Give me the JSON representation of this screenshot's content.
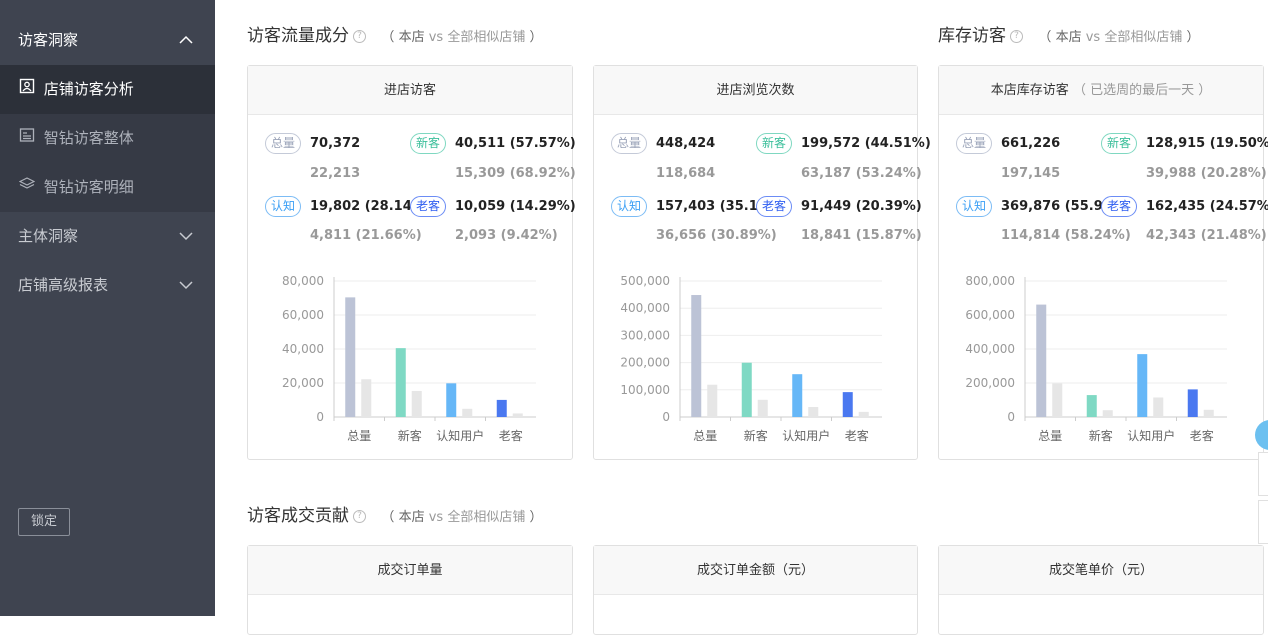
{
  "sidebar": {
    "section_title": "访客洞察",
    "items": [
      {
        "label": "店铺访客分析",
        "icon": "user-portrait-icon"
      },
      {
        "label": "智钻访客整体",
        "icon": "report-icon"
      },
      {
        "label": "智钻访客明细",
        "icon": "layers-icon"
      }
    ],
    "groups": [
      {
        "label": "主体洞察"
      },
      {
        "label": "店铺高级报表"
      }
    ],
    "lock_label": "锁定"
  },
  "sections": {
    "traffic": {
      "title": "访客流量成分",
      "compare": {
        "open": "（",
        "store": "本店",
        "vs": "vs",
        "peers": "全部相似店铺",
        "close": "）"
      }
    },
    "inventory": {
      "title": "库存访客",
      "compare": {
        "open": "（",
        "store": "本店",
        "vs": "vs",
        "peers": "全部相似店铺",
        "close": "）"
      }
    },
    "contribution": {
      "title": "访客成交贡献",
      "compare": {
        "open": "（",
        "store": "本店",
        "vs": "vs",
        "peers": "全部相似店铺",
        "close": "）"
      }
    }
  },
  "help_icon": "?",
  "tags": {
    "total": "总量",
    "new": "新客",
    "know": "认知",
    "old": "老客"
  },
  "cards": [
    {
      "title": "进店访客",
      "title_note": "",
      "total": {
        "main": "70,372",
        "sub": "22,213"
      },
      "new": {
        "main": "40,511 (57.57%)",
        "sub": "15,309 (68.92%)"
      },
      "know": {
        "main": "19,802 (28.14%)",
        "sub": "4,811 (21.66%)"
      },
      "old": {
        "main": "10,059 (14.29%)",
        "sub": "2,093 (9.42%)"
      }
    },
    {
      "title": "进店浏览次数",
      "title_note": "",
      "total": {
        "main": "448,424",
        "sub": "118,684"
      },
      "new": {
        "main": "199,572 (44.51%)",
        "sub": "63,187 (53.24%)"
      },
      "know": {
        "main": "157,403 (35.10%)",
        "sub": "36,656 (30.89%)"
      },
      "old": {
        "main": "91,449 (20.39%)",
        "sub": "18,841 (15.87%)"
      }
    },
    {
      "title": "本店库存访客",
      "title_note": "（ 已选周的最后一天 ）",
      "total": {
        "main": "661,226",
        "sub": "197,145"
      },
      "new": {
        "main": "128,915 (19.50%)",
        "sub": "39,988 (20.28%)"
      },
      "know": {
        "main": "369,876 (55.94%)",
        "sub": "114,814 (58.24%)"
      },
      "old": {
        "main": "162,435 (24.57%)",
        "sub": "42,343 (21.48%)"
      }
    }
  ],
  "bottom_cards": [
    {
      "title": "成交订单量"
    },
    {
      "title": "成交订单金额（元）"
    },
    {
      "title": "成交笔单价（元）"
    }
  ],
  "chart_data": [
    {
      "type": "bar",
      "categories": [
        "总量",
        "新客",
        "认知用户",
        "老客"
      ],
      "yticks": [
        "0",
        "20,000",
        "40,000",
        "60,000",
        "80,000"
      ],
      "ylim": [
        0,
        80000
      ],
      "series": [
        {
          "values": [
            70372,
            40511,
            19802,
            10059
          ]
        },
        {
          "values": [
            22213,
            15309,
            4811,
            2093
          ]
        }
      ]
    },
    {
      "type": "bar",
      "categories": [
        "总量",
        "新客",
        "认知用户",
        "老客"
      ],
      "yticks": [
        "0",
        "100,000",
        "200,000",
        "300,000",
        "400,000",
        "500,000"
      ],
      "ylim": [
        0,
        500000
      ],
      "series": [
        {
          "values": [
            448424,
            199572,
            157403,
            91449
          ]
        },
        {
          "values": [
            118684,
            63187,
            36656,
            18841
          ]
        }
      ]
    },
    {
      "type": "bar",
      "categories": [
        "总量",
        "新客",
        "认知用户",
        "老客"
      ],
      "yticks": [
        "0",
        "200,000",
        "400,000",
        "600,000",
        "800,000"
      ],
      "ylim": [
        0,
        800000
      ],
      "series": [
        {
          "values": [
            661226,
            128915,
            369876,
            162435
          ]
        },
        {
          "values": [
            197145,
            39988,
            114814,
            42343
          ]
        }
      ]
    }
  ],
  "colors": {
    "total": "#bcc3d6",
    "new": "#7fd9c4",
    "know": "#66b7f7",
    "old": "#4a78f0",
    "peer": "#e6e6e6",
    "grid": "#eeeeee",
    "axis": "#cccccc"
  }
}
